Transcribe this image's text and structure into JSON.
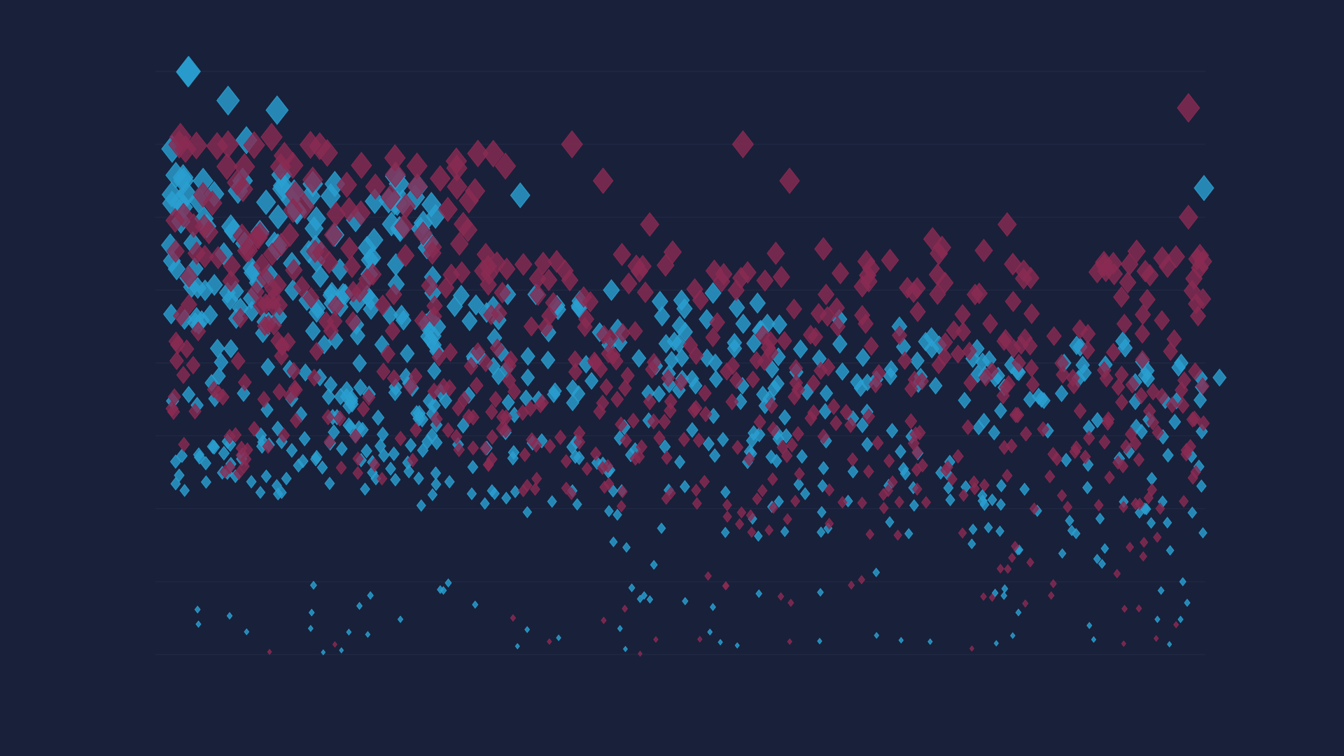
{
  "chart_data": {
    "type": "scatter",
    "marker": "diamond",
    "marker_size_encodes": "y",
    "title": "",
    "xlabel": "",
    "ylabel": "",
    "xlim": [
      0,
      1000
    ],
    "ylim": [
      0,
      8
    ],
    "grid": true,
    "legend": "none",
    "axes_visible": false,
    "colors": {
      "background": "#19203a",
      "grid": "#222b46",
      "series_a": "#2a9fd0",
      "series_b": "#8a2a52"
    },
    "series": [
      {
        "color": "#2a9fd0",
        "opacity": 0.82,
        "seed": 17,
        "regions": [
          {
            "x": [
              0,
              260
            ],
            "y": [
              2.2,
              6.6
            ],
            "n": 240
          },
          {
            "x": [
              0,
              120
            ],
            "y": [
              6.0,
              8.0
            ],
            "n": 7
          },
          {
            "x": [
              240,
              600
            ],
            "y": [
              1.9,
              5.0
            ],
            "n": 150
          },
          {
            "x": [
              560,
              1000
            ],
            "y": [
              1.6,
              4.4
            ],
            "n": 150
          },
          {
            "x": [
              0,
              1000
            ],
            "y": [
              0.0,
              1.0
            ],
            "n": 46
          },
          {
            "x": [
              400,
              1000
            ],
            "y": [
              0.8,
              2.1
            ],
            "n": 26
          }
        ],
        "points": [
          [
            20,
            8.0
          ],
          [
            58,
            7.6
          ],
          [
            15,
            6.5
          ],
          [
            72,
            6.5
          ],
          [
            340,
            6.3
          ],
          [
            1000,
            6.4
          ],
          [
            428,
            5.0
          ],
          [
            648,
            4.6
          ],
          [
            978,
            4.0
          ],
          [
            1015,
            3.8
          ],
          [
            520,
            4.6
          ],
          [
            706,
            4.5
          ],
          [
            865,
            4.0
          ]
        ]
      },
      {
        "color": "#8a2a52",
        "opacity": 0.8,
        "seed": 41,
        "regions": [
          {
            "x": [
              0,
              330
            ],
            "y": [
              2.4,
              7.0
            ],
            "n": 210
          },
          {
            "x": [
              300,
              1000
            ],
            "y": [
              2.0,
              5.6
            ],
            "n": 360
          },
          {
            "x": [
              500,
              1000
            ],
            "y": [
              0.6,
              2.2
            ],
            "n": 40
          },
          {
            "x": [
              0,
              1000
            ],
            "y": [
              0.0,
              0.8
            ],
            "n": 16
          }
        ],
        "points": [
          [
            12,
            7.1
          ],
          [
            58,
            7.0
          ],
          [
            100,
            7.1
          ],
          [
            390,
            7.0
          ],
          [
            555,
            7.0
          ],
          [
            420,
            6.5
          ],
          [
            600,
            6.5
          ],
          [
            810,
            5.9
          ],
          [
            985,
            7.5
          ],
          [
            985,
            6.0
          ],
          [
            738,
            5.7
          ],
          [
            750,
            5.1
          ],
          [
            465,
            5.9
          ]
        ]
      }
    ]
  }
}
